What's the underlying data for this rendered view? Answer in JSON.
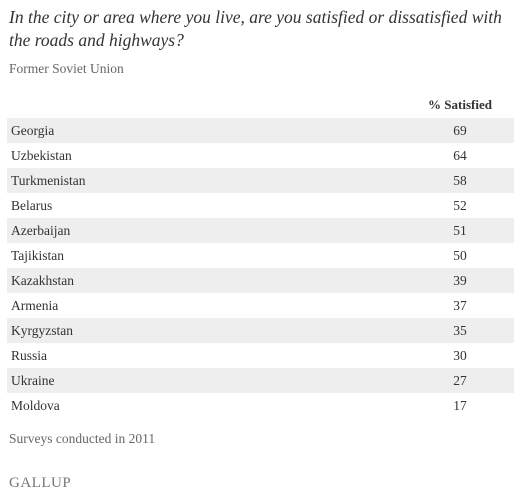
{
  "chart_data": {
    "type": "table",
    "title": "In the city or area where you live, are you satisfied or dissatisfied with the roads and highways?",
    "subtitle": "Former Soviet Union",
    "column_header": "% Satisfied",
    "categories": [
      "Georgia",
      "Uzbekistan",
      "Turkmenistan",
      "Belarus",
      "Azerbaijan",
      "Tajikistan",
      "Kazakhstan",
      "Armenia",
      "Kyrgyzstan",
      "Russia",
      "Ukraine",
      "Moldova"
    ],
    "values": [
      69,
      64,
      58,
      52,
      51,
      50,
      39,
      37,
      35,
      30,
      27,
      17
    ],
    "footnote": "Surveys conducted in 2011"
  },
  "logo": "GALLUP",
  "colors": {
    "row_stripe": "#eeeeee",
    "text": "#333333",
    "muted_text": "#666666"
  }
}
